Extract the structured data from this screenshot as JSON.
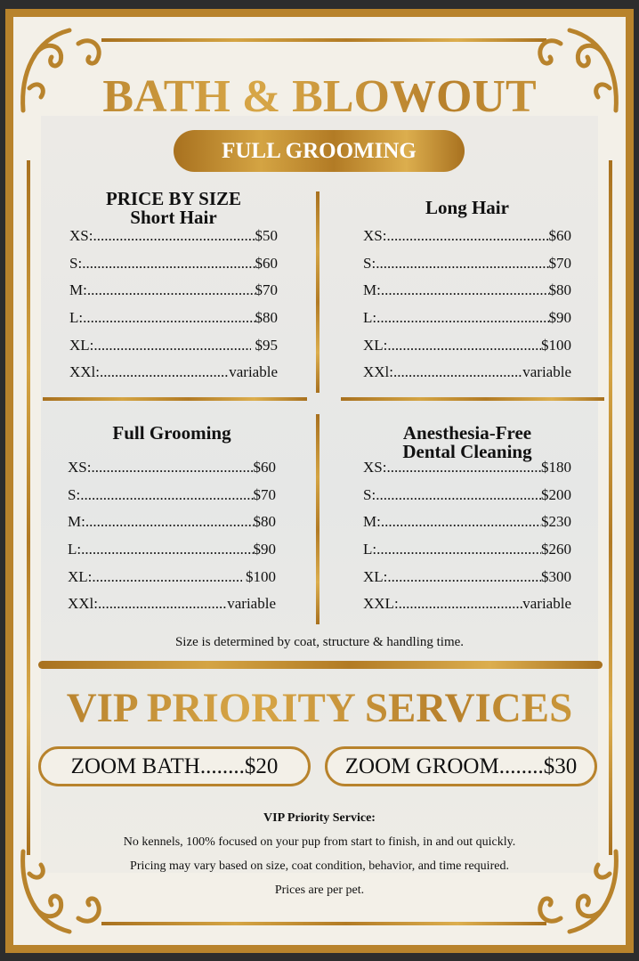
{
  "header": {
    "title": "BATH & BLOWOUT",
    "badge": "FULL GROOMING"
  },
  "sections": [
    {
      "heading": [
        "PRICE BY SIZE",
        "Short Hair"
      ],
      "rows": [
        [
          "XS:",
          "$50"
        ],
        [
          "S:",
          "$60"
        ],
        [
          "M:",
          "$70"
        ],
        [
          "L:",
          "$80"
        ],
        [
          "XL:",
          " $95"
        ],
        [
          "XXl:",
          "variable"
        ]
      ]
    },
    {
      "heading": [
        "Long Hair"
      ],
      "rows": [
        [
          "XS:",
          "$60"
        ],
        [
          "S:",
          "$70"
        ],
        [
          "M:",
          "$80"
        ],
        [
          "L:",
          "$90"
        ],
        [
          "XL:",
          "$100"
        ],
        [
          "XXl:",
          "variable"
        ]
      ]
    },
    {
      "heading": [
        "Full Grooming"
      ],
      "rows": [
        [
          "XS:",
          "$60"
        ],
        [
          "S:",
          "$70"
        ],
        [
          "M:",
          "$80"
        ],
        [
          "L:",
          "$90"
        ],
        [
          "XL:",
          " $100"
        ],
        [
          "XXl:",
          "variable"
        ]
      ]
    },
    {
      "heading": [
        "Anesthesia-Free",
        "Dental Cleaning"
      ],
      "rows": [
        [
          "XS:",
          "$180"
        ],
        [
          "S:",
          "$200"
        ],
        [
          "M:",
          "$230"
        ],
        [
          "L:",
          "$260"
        ],
        [
          "XL:",
          "$300"
        ],
        [
          "XXL:",
          "variable"
        ]
      ]
    }
  ],
  "size_note": "Size is determined by coat, structure & handling time.",
  "vip": {
    "title": "VIP PRIORITY SERVICES",
    "items": [
      "ZOOM BATH........$20",
      "ZOOM GROOM........$30"
    ],
    "info_title": "VIP Priority Service:",
    "info_lines": [
      "No kennels, 100% focused on your pup from start to finish, in and out quickly.",
      "Pricing may vary based on size, coat condition, behavior, and time required.",
      "Prices are per pet."
    ]
  },
  "colors": {
    "gold": "#b8832c",
    "background": "#f3f0e8"
  },
  "icons": [
    "ornamental-corner-flourish"
  ]
}
